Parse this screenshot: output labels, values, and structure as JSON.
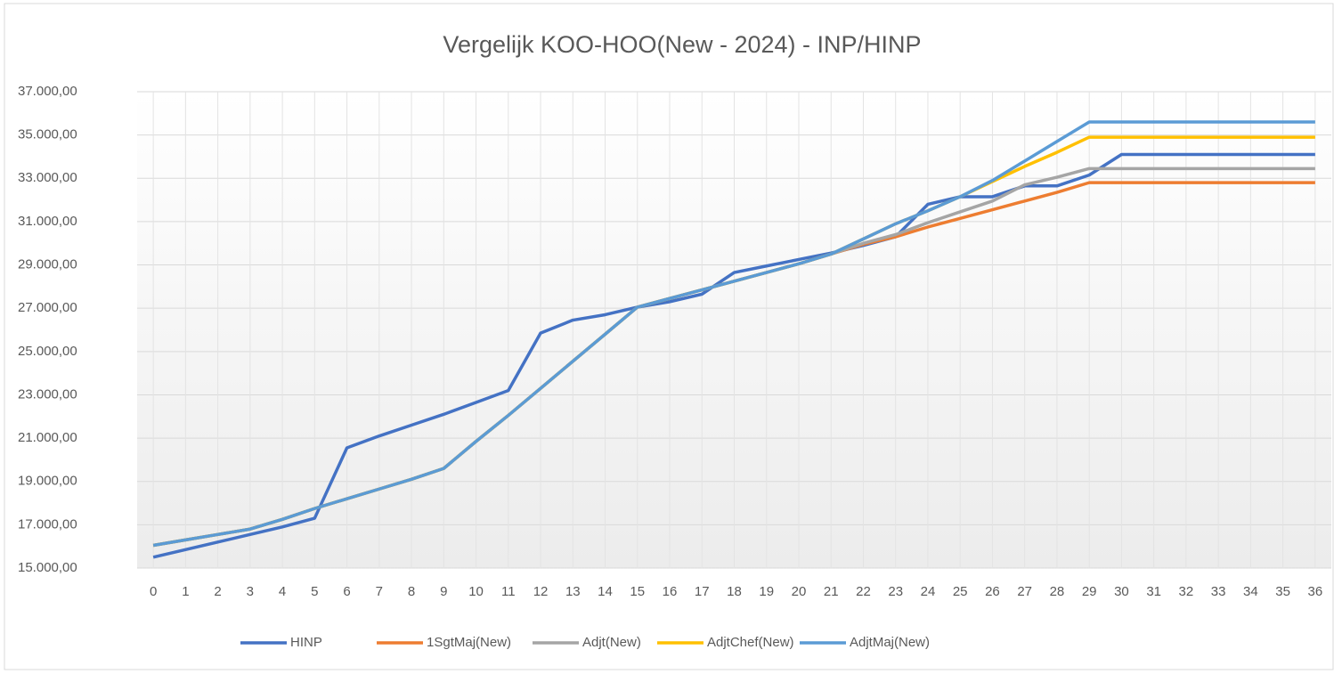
{
  "chart_data": {
    "type": "line",
    "title": "Vergelijk  KOO-HOO(New  - 2024) - INP/HINP",
    "x": [
      0,
      1,
      2,
      3,
      4,
      5,
      6,
      7,
      8,
      9,
      10,
      11,
      12,
      13,
      14,
      15,
      16,
      17,
      18,
      19,
      20,
      21,
      22,
      23,
      24,
      25,
      26,
      27,
      28,
      29,
      30,
      31,
      32,
      33,
      34,
      35,
      36
    ],
    "xlim": [
      0,
      36
    ],
    "ylim": [
      15000,
      37000
    ],
    "yticks": [
      {
        "value": 15000,
        "label": "15.000,00"
      },
      {
        "value": 17000,
        "label": "17.000,00"
      },
      {
        "value": 19000,
        "label": "19.000,00"
      },
      {
        "value": 21000,
        "label": "21.000,00"
      },
      {
        "value": 23000,
        "label": "23.000,00"
      },
      {
        "value": 25000,
        "label": "25.000,00"
      },
      {
        "value": 27000,
        "label": "27.000,00"
      },
      {
        "value": 29000,
        "label": "29.000,00"
      },
      {
        "value": 31000,
        "label": "31.000,00"
      },
      {
        "value": 33000,
        "label": "33.000,00"
      },
      {
        "value": 35000,
        "label": "35.000,00"
      },
      {
        "value": 37000,
        "label": "37.000,00"
      }
    ],
    "grid": true,
    "legend": "bottom",
    "series": [
      {
        "name": "HINP",
        "color": "#4472c4",
        "values": [
          15500,
          15850,
          16200,
          16550,
          16900,
          17300,
          20550,
          21100,
          21600,
          22100,
          22650,
          23200,
          25850,
          26450,
          26700,
          27050,
          27300,
          27650,
          28650,
          28950,
          29250,
          29550,
          29900,
          30300,
          31800,
          32150,
          32150,
          32650,
          32650,
          33150,
          34100,
          34100,
          34100,
          34100,
          34100,
          34100,
          34100
        ]
      },
      {
        "name": "1SgtMaj(New)",
        "color": "#ed7d31",
        "values": [
          16050,
          16300,
          16550,
          16800,
          17250,
          17750,
          18200,
          18650,
          19100,
          19600,
          20850,
          22050,
          23300,
          24550,
          25800,
          27050,
          27450,
          27850,
          28250,
          28650,
          29050,
          29500,
          29950,
          30300,
          30750,
          31150,
          31550,
          31950,
          32350,
          32800,
          32800,
          32800,
          32800,
          32800,
          32800,
          32800,
          32800
        ]
      },
      {
        "name": "Adjt(New)",
        "color": "#a5a5a5",
        "values": [
          16050,
          16300,
          16550,
          16800,
          17250,
          17750,
          18200,
          18650,
          19100,
          19600,
          20850,
          22050,
          23300,
          24550,
          25800,
          27050,
          27450,
          27850,
          28250,
          28650,
          29050,
          29500,
          30000,
          30400,
          30950,
          31450,
          31950,
          32700,
          33050,
          33450,
          33450,
          33450,
          33450,
          33450,
          33450,
          33450,
          33450
        ]
      },
      {
        "name": "AdjtChef(New)",
        "color": "#ffc000",
        "values": [
          16050,
          16300,
          16550,
          16800,
          17250,
          17750,
          18200,
          18650,
          19100,
          19600,
          20850,
          22050,
          23300,
          24550,
          25800,
          27050,
          27450,
          27850,
          28250,
          28650,
          29050,
          29500,
          30200,
          30900,
          31500,
          32150,
          32850,
          33550,
          34200,
          34900,
          34900,
          34900,
          34900,
          34900,
          34900,
          34900,
          34900
        ]
      },
      {
        "name": "AdjtMaj(New)",
        "color": "#5b9bd5",
        "values": [
          16050,
          16300,
          16550,
          16800,
          17250,
          17750,
          18200,
          18650,
          19100,
          19600,
          20850,
          22050,
          23300,
          24550,
          25800,
          27050,
          27450,
          27850,
          28250,
          28650,
          29050,
          29500,
          30200,
          30900,
          31500,
          32150,
          32900,
          33800,
          34700,
          35600,
          35600,
          35600,
          35600,
          35600,
          35600,
          35600,
          35600
        ]
      }
    ]
  }
}
